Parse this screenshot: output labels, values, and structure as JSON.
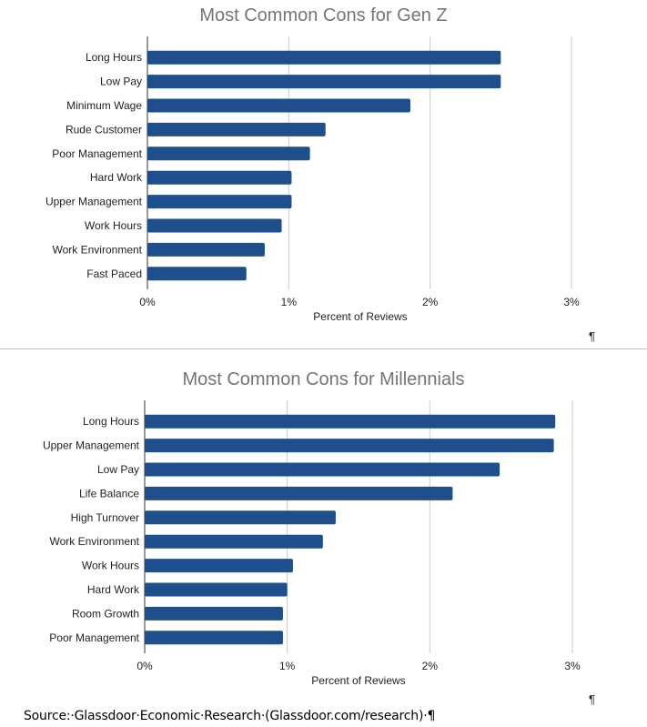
{
  "chart_data": [
    {
      "type": "bar",
      "orientation": "horizontal",
      "title": "Most Common Cons for Gen Z",
      "xlabel": "Percent of Reviews",
      "ylabel": "",
      "xlim": [
        0,
        3
      ],
      "ticks": [
        "0%",
        "1%",
        "2%",
        "3%"
      ],
      "grid": true,
      "categories": [
        "Long Hours",
        "Low Pay",
        "Minimum Wage",
        "Rude Customer",
        "Poor Management",
        "Hard Work",
        "Upper Management",
        "Work Hours",
        "Work Environment",
        "Fast Paced"
      ],
      "values": [
        2.5,
        2.5,
        1.86,
        1.26,
        1.15,
        1.02,
        1.02,
        0.95,
        0.83,
        0.7
      ],
      "bar_color": "#1f4e8c",
      "pilcrow": "¶"
    },
    {
      "type": "bar",
      "orientation": "horizontal",
      "title": "Most Common Cons for Millennials",
      "xlabel": "Percent of Reviews",
      "ylabel": "",
      "xlim": [
        0,
        3
      ],
      "ticks": [
        "0%",
        "1%",
        "2%",
        "3%"
      ],
      "grid": true,
      "categories": [
        "Long Hours",
        "Upper Management",
        "Low Pay",
        "Life Balance",
        "High Turnover",
        "Work Environment",
        "Work Hours",
        "Hard Work",
        "Room Growth",
        "Poor Management"
      ],
      "values": [
        2.88,
        2.87,
        2.49,
        2.16,
        1.34,
        1.25,
        1.04,
        1.0,
        0.97,
        0.97
      ],
      "bar_color": "#1f4e8c",
      "pilcrow": "¶"
    }
  ],
  "source_text": "Source:·Glassdoor·Economic·Research·(Glassdoor.com/research)·¶"
}
